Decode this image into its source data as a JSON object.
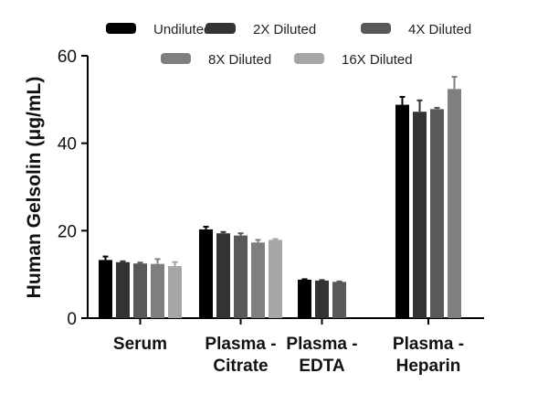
{
  "chart_data": {
    "type": "bar",
    "title": "",
    "xlabel": "",
    "ylabel": "Human  Gelsolin (μg/mL)",
    "ylim": [
      0,
      60
    ],
    "yticks": [
      0,
      20,
      40,
      60
    ],
    "grid": false,
    "legend_position": "top",
    "categories": [
      {
        "lines": [
          "Serum"
        ]
      },
      {
        "lines": [
          "Plasma -",
          "Citrate"
        ]
      },
      {
        "lines": [
          "Plasma -",
          "EDTA"
        ]
      },
      {
        "lines": [
          "Plasma -",
          "Heparin"
        ]
      }
    ],
    "series": [
      {
        "name": "Undiluted",
        "color": "#000000",
        "values": [
          13.3,
          20.3,
          8.8,
          48.8
        ],
        "errors": [
          0.8,
          0.6,
          0.1,
          1.8
        ]
      },
      {
        "name": "2X Diluted",
        "color": "#333333",
        "values": [
          12.8,
          19.4,
          8.6,
          47.2
        ],
        "errors": [
          0.2,
          0.3,
          0.1,
          2.6
        ]
      },
      {
        "name": "4X Diluted",
        "color": "#595959",
        "values": [
          12.5,
          18.9,
          8.3,
          47.8
        ],
        "errors": [
          0.2,
          0.5,
          0.1,
          0.3
        ]
      },
      {
        "name": "8X Diluted",
        "color": "#7f7f7f",
        "values": [
          12.4,
          17.3,
          null,
          52.4
        ],
        "errors": [
          1.1,
          0.6,
          null,
          2.8
        ]
      },
      {
        "name": "16X Diluted",
        "color": "#a6a6a6",
        "values": [
          11.9,
          17.9,
          null,
          null
        ],
        "errors": [
          0.9,
          0.2,
          null,
          null
        ]
      }
    ]
  }
}
